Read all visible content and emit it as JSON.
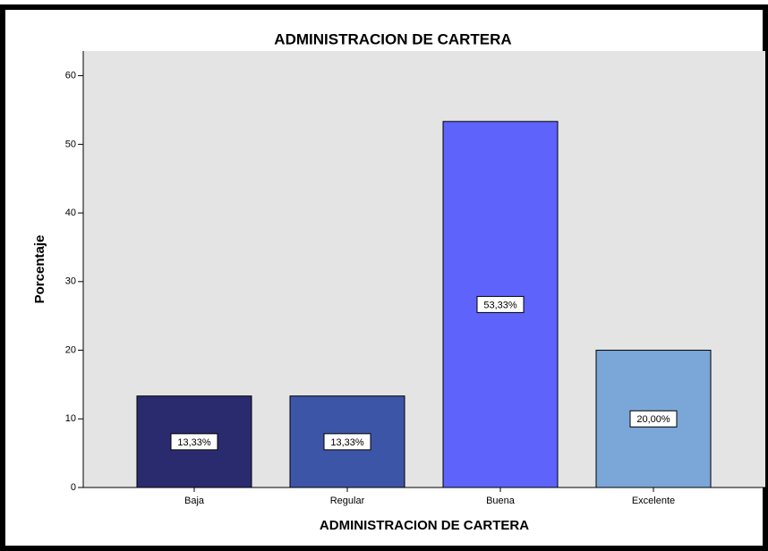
{
  "chart_data": {
    "type": "bar",
    "title": "ADMINISTRACION DE CARTERA",
    "x_label": "ADMINISTRACION DE CARTERA",
    "y_label": "Porcentaje",
    "categories": [
      "Baja",
      "Regular",
      "Buena",
      "Excelente"
    ],
    "values": [
      13.33,
      13.33,
      53.33,
      20.0
    ],
    "value_labels": [
      "13,33%",
      "13,33%",
      "53,33%",
      "20,00%"
    ],
    "colors": [
      "#2a2b6f",
      "#3d55a7",
      "#5e63fb",
      "#7aa7d7"
    ],
    "ylim": [
      0,
      63.6
    ],
    "yticks": [
      0,
      10,
      20,
      30,
      40,
      50,
      60
    ],
    "grid": false
  }
}
